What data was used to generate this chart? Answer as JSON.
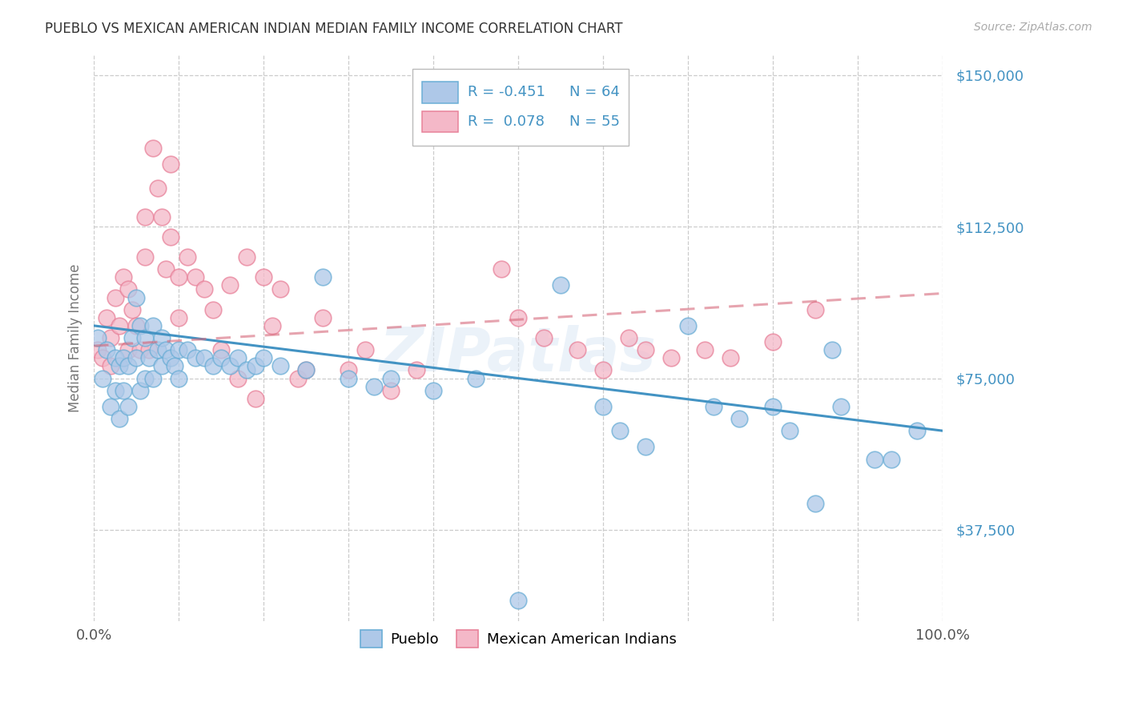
{
  "title": "PUEBLO VS MEXICAN AMERICAN INDIAN MEDIAN FAMILY INCOME CORRELATION CHART",
  "source": "Source: ZipAtlas.com",
  "ylabel": "Median Family Income",
  "xlim": [
    0,
    1.0
  ],
  "ylim": [
    15000,
    155000
  ],
  "yticks": [
    37500,
    75000,
    112500,
    150000
  ],
  "ytick_labels": [
    "$37,500",
    "$75,000",
    "$112,500",
    "$150,000"
  ],
  "xtick_pos": [
    0.0,
    0.5,
    1.0
  ],
  "xtick_labels": [
    "0.0%",
    "",
    "100.0%"
  ],
  "legend_label_blue": "Pueblo",
  "legend_label_pink": "Mexican American Indians",
  "blue_color": "#aec8e8",
  "blue_edge_color": "#6baed6",
  "pink_color": "#f4b8c8",
  "pink_edge_color": "#e8829a",
  "blue_line_color": "#4393c3",
  "pink_line_color": "#d6687a",
  "title_color": "#333333",
  "axis_label_color": "#777777",
  "tick_label_color": "#4393c3",
  "grid_color": "#cccccc",
  "watermark": "ZIPatlas",
  "legend_text_color": "#4393c3",
  "blue_scatter_x": [
    0.005,
    0.01,
    0.015,
    0.02,
    0.025,
    0.025,
    0.03,
    0.03,
    0.035,
    0.035,
    0.04,
    0.04,
    0.045,
    0.05,
    0.05,
    0.055,
    0.055,
    0.06,
    0.06,
    0.065,
    0.07,
    0.07,
    0.075,
    0.08,
    0.08,
    0.085,
    0.09,
    0.095,
    0.1,
    0.1,
    0.11,
    0.12,
    0.13,
    0.14,
    0.15,
    0.16,
    0.17,
    0.18,
    0.19,
    0.2,
    0.22,
    0.25,
    0.27,
    0.3,
    0.33,
    0.35,
    0.4,
    0.45,
    0.5,
    0.55,
    0.6,
    0.62,
    0.65,
    0.7,
    0.73,
    0.76,
    0.8,
    0.82,
    0.85,
    0.87,
    0.88,
    0.92,
    0.94,
    0.97
  ],
  "blue_scatter_y": [
    85000,
    75000,
    82000,
    68000,
    80000,
    72000,
    78000,
    65000,
    80000,
    72000,
    78000,
    68000,
    85000,
    95000,
    80000,
    88000,
    72000,
    85000,
    75000,
    80000,
    88000,
    75000,
    82000,
    85000,
    78000,
    82000,
    80000,
    78000,
    82000,
    75000,
    82000,
    80000,
    80000,
    78000,
    80000,
    78000,
    80000,
    77000,
    78000,
    80000,
    78000,
    77000,
    100000,
    75000,
    73000,
    75000,
    72000,
    75000,
    20000,
    98000,
    68000,
    62000,
    58000,
    88000,
    68000,
    65000,
    68000,
    62000,
    44000,
    82000,
    68000,
    55000,
    55000,
    62000
  ],
  "pink_scatter_x": [
    0.005,
    0.01,
    0.015,
    0.02,
    0.02,
    0.025,
    0.03,
    0.035,
    0.04,
    0.04,
    0.045,
    0.05,
    0.055,
    0.06,
    0.06,
    0.065,
    0.07,
    0.075,
    0.08,
    0.085,
    0.09,
    0.09,
    0.1,
    0.1,
    0.11,
    0.12,
    0.13,
    0.14,
    0.15,
    0.16,
    0.17,
    0.18,
    0.19,
    0.2,
    0.21,
    0.22,
    0.24,
    0.25,
    0.27,
    0.3,
    0.32,
    0.35,
    0.38,
    0.48,
    0.5,
    0.53,
    0.57,
    0.6,
    0.63,
    0.65,
    0.68,
    0.72,
    0.75,
    0.8,
    0.85
  ],
  "pink_scatter_y": [
    82000,
    80000,
    90000,
    85000,
    78000,
    95000,
    88000,
    100000,
    97000,
    82000,
    92000,
    88000,
    82000,
    115000,
    105000,
    82000,
    132000,
    122000,
    115000,
    102000,
    128000,
    110000,
    100000,
    90000,
    105000,
    100000,
    97000,
    92000,
    82000,
    98000,
    75000,
    105000,
    70000,
    100000,
    88000,
    97000,
    75000,
    77000,
    90000,
    77000,
    82000,
    72000,
    77000,
    102000,
    90000,
    85000,
    82000,
    77000,
    85000,
    82000,
    80000,
    82000,
    80000,
    84000,
    92000
  ],
  "blue_line_x": [
    0.0,
    1.0
  ],
  "blue_line_y": [
    88000,
    62000
  ],
  "pink_line_x": [
    0.0,
    1.0
  ],
  "pink_line_y": [
    83000,
    96000
  ]
}
